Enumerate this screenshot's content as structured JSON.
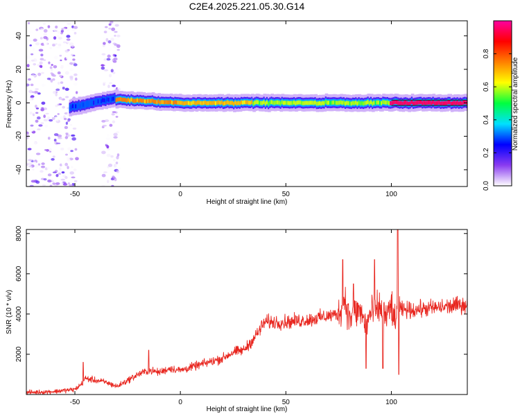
{
  "page": {
    "title": "C2E4.2025.221.05.30.G14"
  },
  "chart_data": [
    {
      "type": "heatmap",
      "xlabel": "Height of straight line (km)",
      "ylabel": "Frequency (Hz)",
      "xlim": [
        -73,
        136
      ],
      "ylim": [
        -50,
        49
      ],
      "xticks": [
        -50,
        0,
        50,
        100
      ],
      "yticks": [
        -40,
        -20,
        0,
        20,
        40
      ],
      "colorbar": {
        "label": "Normalized spectral amplitude",
        "range": [
          0,
          1
        ],
        "ticks": [
          "0.0",
          "0.2",
          "0.4",
          "0.6",
          "0.8"
        ],
        "colors": [
          "#ffffff",
          "#8a3cf0",
          "#0000ff",
          "#00e0ff",
          "#00ff40",
          "#ffff00",
          "#ff8000",
          "#ff0000",
          "#ff00a0"
        ]
      },
      "band": {
        "segments": [
          {
            "x": [
              -52,
              -30
            ],
            "center_hz": [
              -3,
              3
            ],
            "amplitude": 0.3
          },
          {
            "x": [
              -30,
              0
            ],
            "center_hz": [
              2,
              0
            ],
            "amplitude": 0.75
          },
          {
            "x": [
              0,
              35
            ],
            "center_hz": [
              0,
              0
            ],
            "amplitude": 0.7
          },
          {
            "x": [
              35,
              100
            ],
            "center_hz": [
              0,
              0
            ],
            "amplitude": 0.6
          },
          {
            "x": [
              100,
              136
            ],
            "center_hz": [
              0,
              0
            ],
            "amplitude": 0.95
          }
        ]
      },
      "noise_regions": [
        {
          "x": [
            -73,
            -49
          ],
          "f": [
            -50,
            49
          ]
        },
        {
          "x": [
            -37,
            -29
          ],
          "f": [
            -50,
            49
          ]
        }
      ]
    },
    {
      "type": "line",
      "xlabel": "Height of straight line (km)",
      "ylabel": "SNR (10 * v/v)",
      "xlim": [
        -73,
        136
      ],
      "ylim": [
        0,
        8200
      ],
      "xticks": [
        -50,
        0,
        50,
        100
      ],
      "yticks": [
        2000,
        4000,
        6000,
        8000
      ],
      "color": "#e8261f",
      "series": [
        {
          "x": [
            -73,
            -60,
            -50,
            -47,
            -45,
            -40,
            -35,
            -30,
            -25,
            -20,
            -15,
            -10,
            -5,
            0,
            10,
            20,
            25,
            30,
            35,
            40,
            50,
            60,
            70,
            75,
            78,
            80,
            85,
            88,
            90,
            95,
            98,
            100,
            102,
            103,
            104,
            110,
            120,
            130,
            136
          ],
          "values": [
            100,
            150,
            250,
            500,
            800,
            700,
            600,
            400,
            700,
            1000,
            1200,
            1100,
            1300,
            1200,
            1500,
            1800,
            2100,
            2200,
            2800,
            3600,
            3600,
            3700,
            3900,
            4000,
            4800,
            3800,
            4200,
            3400,
            4000,
            4300,
            3800,
            4500,
            3200,
            5000,
            4200,
            4200,
            4300,
            4400,
            4500
          ]
        }
      ],
      "spikes": [
        {
          "x": -46,
          "value": 1600
        },
        {
          "x": -15,
          "value": 2200
        },
        {
          "x": 77,
          "value": 6700
        },
        {
          "x": 82,
          "value": 5500
        },
        {
          "x": 88,
          "value": 1300
        },
        {
          "x": 92,
          "value": 6700
        },
        {
          "x": 96,
          "value": 1300
        },
        {
          "x": 103,
          "value": 8200
        },
        {
          "x": 103.5,
          "value": 1000
        }
      ]
    }
  ]
}
